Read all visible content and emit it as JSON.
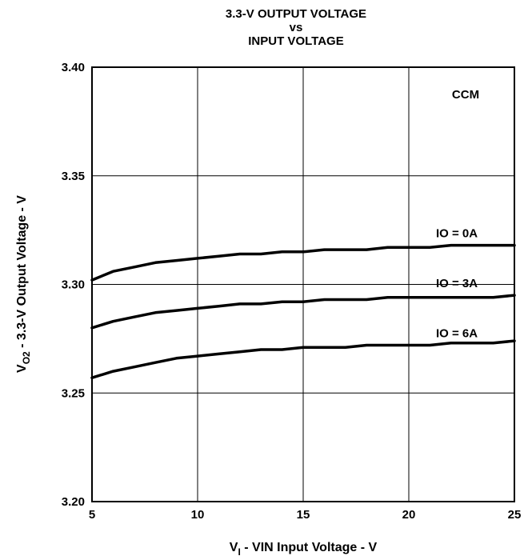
{
  "chart_data": {
    "type": "line",
    "title_lines": [
      "3.3-V OUTPUT VOLTAGE",
      "vs",
      "INPUT VOLTAGE"
    ],
    "xlabel": {
      "main": "V",
      "sub": "I",
      "rest": " - VIN Input Voltage - V"
    },
    "ylabel": {
      "main": "V",
      "sub": "O2",
      "rest": " - 3.3-V Output Voltage - V"
    },
    "xlim": [
      5,
      25
    ],
    "ylim": [
      3.2,
      3.4
    ],
    "x_ticks": [
      5,
      10,
      15,
      20,
      25
    ],
    "y_ticks": [
      3.2,
      3.25,
      3.3,
      3.35,
      3.4
    ],
    "x_tick_labels": [
      "5",
      "10",
      "15",
      "20",
      "25"
    ],
    "y_tick_labels": [
      "3.20",
      "3.25",
      "3.30",
      "3.35",
      "3.40"
    ],
    "grid": true,
    "annotation": "CCM",
    "series": [
      {
        "name": "IO = 0A",
        "x": [
          5,
          6,
          7,
          8,
          9,
          10,
          11,
          12,
          13,
          14,
          15,
          16,
          17,
          18,
          19,
          20,
          21,
          22,
          23,
          24,
          25
        ],
        "y": [
          3.302,
          3.306,
          3.308,
          3.31,
          3.311,
          3.312,
          3.313,
          3.314,
          3.314,
          3.315,
          3.315,
          3.316,
          3.316,
          3.316,
          3.317,
          3.317,
          3.317,
          3.318,
          3.318,
          3.318,
          3.318
        ]
      },
      {
        "name": "IO = 3A",
        "x": [
          5,
          6,
          7,
          8,
          9,
          10,
          11,
          12,
          13,
          14,
          15,
          16,
          17,
          18,
          19,
          20,
          21,
          22,
          23,
          24,
          25
        ],
        "y": [
          3.28,
          3.283,
          3.285,
          3.287,
          3.288,
          3.289,
          3.29,
          3.291,
          3.291,
          3.292,
          3.292,
          3.293,
          3.293,
          3.293,
          3.294,
          3.294,
          3.294,
          3.294,
          3.294,
          3.294,
          3.295
        ]
      },
      {
        "name": "IO = 6A",
        "x": [
          5,
          6,
          7,
          8,
          9,
          10,
          11,
          12,
          13,
          14,
          15,
          16,
          17,
          18,
          19,
          20,
          21,
          22,
          23,
          24,
          25
        ],
        "y": [
          3.257,
          3.26,
          3.262,
          3.264,
          3.266,
          3.267,
          3.268,
          3.269,
          3.27,
          3.27,
          3.271,
          3.271,
          3.271,
          3.272,
          3.272,
          3.272,
          3.272,
          3.273,
          3.273,
          3.273,
          3.274
        ]
      }
    ]
  }
}
